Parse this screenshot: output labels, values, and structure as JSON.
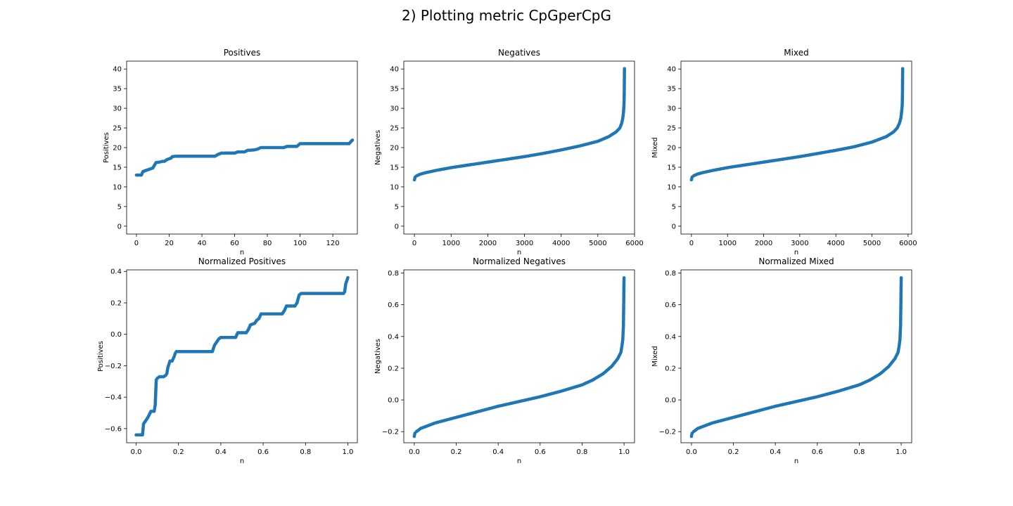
{
  "suptitle": "2) Plotting metric CpGperCpG",
  "colors": {
    "marker": "#1f77b4",
    "axes": "#000000"
  },
  "chart_data": [
    {
      "type": "scatter",
      "title": "Positives",
      "xlabel": "n",
      "ylabel": "Positives",
      "xlim": [
        -6,
        135
      ],
      "ylim": [
        -2,
        42
      ],
      "xticks": [
        0,
        20,
        40,
        60,
        80,
        100,
        120
      ],
      "yticks": [
        0,
        5,
        10,
        15,
        20,
        25,
        30,
        35,
        40
      ],
      "ytick_labels": [
        "0",
        "5",
        "10",
        "15",
        "20",
        "25",
        "30",
        "35",
        "40"
      ],
      "xtick_labels": [
        "0",
        "20",
        "40",
        "60",
        "80",
        "100",
        "120"
      ],
      "grid": false,
      "points": [
        [
          0,
          13.0
        ],
        [
          3,
          13.0
        ],
        [
          4,
          13.9
        ],
        [
          6,
          14.2
        ],
        [
          8,
          14.5
        ],
        [
          10,
          14.8
        ],
        [
          12,
          16.2
        ],
        [
          14,
          16.3
        ],
        [
          16,
          16.5
        ],
        [
          17,
          16.5
        ],
        [
          19,
          17.0
        ],
        [
          21,
          17.3
        ],
        [
          22,
          17.7
        ],
        [
          24,
          17.8
        ],
        [
          48,
          17.8
        ],
        [
          50,
          18.3
        ],
        [
          52,
          18.6
        ],
        [
          54,
          18.6
        ],
        [
          60,
          18.6
        ],
        [
          62,
          18.9
        ],
        [
          66,
          18.9
        ],
        [
          68,
          19.3
        ],
        [
          72,
          19.4
        ],
        [
          74,
          19.6
        ],
        [
          76,
          20.0
        ],
        [
          90,
          20.0
        ],
        [
          92,
          20.3
        ],
        [
          98,
          20.3
        ],
        [
          100,
          21.0
        ],
        [
          130,
          21.0
        ],
        [
          131,
          21.5
        ],
        [
          132,
          21.9
        ]
      ]
    },
    {
      "type": "scatter",
      "title": "Negatives",
      "xlabel": "n",
      "ylabel": "Negatives",
      "xlim": [
        -290,
        6000
      ],
      "ylim": [
        -2,
        42
      ],
      "xticks": [
        0,
        1000,
        2000,
        3000,
        4000,
        5000,
        6000
      ],
      "yticks": [
        0,
        5,
        10,
        15,
        20,
        25,
        30,
        35,
        40
      ],
      "xtick_labels": [
        "0",
        "1000",
        "2000",
        "3000",
        "4000",
        "5000",
        "6000"
      ],
      "ytick_labels": [
        "0",
        "5",
        "10",
        "15",
        "20",
        "25",
        "30",
        "35",
        "40"
      ],
      "grid": false,
      "points": [
        [
          0,
          11.8
        ],
        [
          20,
          12.5
        ],
        [
          60,
          12.8
        ],
        [
          150,
          13.2
        ],
        [
          300,
          13.6
        ],
        [
          600,
          14.2
        ],
        [
          1000,
          14.9
        ],
        [
          1500,
          15.6
        ],
        [
          2000,
          16.3
        ],
        [
          2500,
          17.0
        ],
        [
          3000,
          17.7
        ],
        [
          3500,
          18.5
        ],
        [
          4000,
          19.4
        ],
        [
          4500,
          20.4
        ],
        [
          5000,
          21.6
        ],
        [
          5300,
          22.8
        ],
        [
          5500,
          24.0
        ],
        [
          5600,
          25.0
        ],
        [
          5650,
          26.2
        ],
        [
          5680,
          27.5
        ],
        [
          5700,
          29.0
        ],
        [
          5710,
          30.5
        ],
        [
          5715,
          31.5
        ],
        [
          5720,
          34.2
        ],
        [
          5725,
          40.1
        ]
      ]
    },
    {
      "type": "scatter",
      "title": "Mixed",
      "xlabel": "n",
      "ylabel": "Mixed",
      "xlim": [
        -290,
        6100
      ],
      "ylim": [
        -2,
        42
      ],
      "xticks": [
        0,
        1000,
        2000,
        3000,
        4000,
        5000,
        6000
      ],
      "yticks": [
        0,
        5,
        10,
        15,
        20,
        25,
        30,
        35,
        40
      ],
      "xtick_labels": [
        "0",
        "1000",
        "2000",
        "3000",
        "4000",
        "5000",
        "6000"
      ],
      "ytick_labels": [
        "0",
        "5",
        "10",
        "15",
        "20",
        "25",
        "30",
        "35",
        "40"
      ],
      "grid": false,
      "points": [
        [
          0,
          11.8
        ],
        [
          20,
          12.5
        ],
        [
          60,
          12.8
        ],
        [
          150,
          13.2
        ],
        [
          300,
          13.6
        ],
        [
          600,
          14.2
        ],
        [
          1000,
          14.9
        ],
        [
          1500,
          15.6
        ],
        [
          2000,
          16.3
        ],
        [
          2500,
          17.0
        ],
        [
          3000,
          17.7
        ],
        [
          3500,
          18.5
        ],
        [
          4000,
          19.3
        ],
        [
          4500,
          20.2
        ],
        [
          5000,
          21.4
        ],
        [
          5400,
          22.8
        ],
        [
          5600,
          24.0
        ],
        [
          5700,
          25.0
        ],
        [
          5760,
          26.2
        ],
        [
          5800,
          27.5
        ],
        [
          5820,
          29.0
        ],
        [
          5835,
          30.5
        ],
        [
          5840,
          31.5
        ],
        [
          5845,
          34.2
        ],
        [
          5850,
          40.1
        ]
      ]
    },
    {
      "type": "scatter",
      "title": "Normalized Positives",
      "xlabel": "n",
      "ylabel": "Positives",
      "xlim": [
        -0.045,
        1.045
      ],
      "ylim": [
        -0.69,
        0.41
      ],
      "xticks": [
        0.0,
        0.2,
        0.4,
        0.6,
        0.8,
        1.0
      ],
      "yticks": [
        -0.6,
        -0.4,
        -0.2,
        0.0,
        0.2,
        0.4
      ],
      "xtick_labels": [
        "0.0",
        "0.2",
        "0.4",
        "0.6",
        "0.8",
        "1.0"
      ],
      "ytick_labels": [
        "−0.6",
        "−0.4",
        "−0.2",
        "0.0",
        "0.2",
        "0.4"
      ],
      "grid": false,
      "points": [
        [
          0.0,
          -0.64
        ],
        [
          0.03,
          -0.64
        ],
        [
          0.035,
          -0.57
        ],
        [
          0.045,
          -0.55
        ],
        [
          0.055,
          -0.53
        ],
        [
          0.07,
          -0.49
        ],
        [
          0.085,
          -0.49
        ],
        [
          0.09,
          -0.45
        ],
        [
          0.095,
          -0.29
        ],
        [
          0.1,
          -0.28
        ],
        [
          0.11,
          -0.27
        ],
        [
          0.13,
          -0.27
        ],
        [
          0.14,
          -0.26
        ],
        [
          0.145,
          -0.25
        ],
        [
          0.15,
          -0.21
        ],
        [
          0.16,
          -0.17
        ],
        [
          0.17,
          -0.17
        ],
        [
          0.18,
          -0.14
        ],
        [
          0.185,
          -0.12
        ],
        [
          0.19,
          -0.11
        ],
        [
          0.36,
          -0.11
        ],
        [
          0.37,
          -0.07
        ],
        [
          0.38,
          -0.05
        ],
        [
          0.39,
          -0.03
        ],
        [
          0.4,
          -0.02
        ],
        [
          0.47,
          -0.02
        ],
        [
          0.48,
          0.01
        ],
        [
          0.52,
          0.01
        ],
        [
          0.53,
          0.03
        ],
        [
          0.54,
          0.06
        ],
        [
          0.56,
          0.07
        ],
        [
          0.57,
          0.09
        ],
        [
          0.58,
          0.1
        ],
        [
          0.59,
          0.13
        ],
        [
          0.69,
          0.13
        ],
        [
          0.7,
          0.15
        ],
        [
          0.71,
          0.18
        ],
        [
          0.75,
          0.18
        ],
        [
          0.76,
          0.2
        ],
        [
          0.77,
          0.25
        ],
        [
          0.78,
          0.26
        ],
        [
          0.98,
          0.26
        ],
        [
          0.985,
          0.27
        ],
        [
          0.99,
          0.32
        ],
        [
          1.0,
          0.36
        ]
      ]
    },
    {
      "type": "scatter",
      "title": "Normalized Negatives",
      "xlabel": "n",
      "ylabel": "Negatives",
      "xlim": [
        -0.05,
        1.05
      ],
      "ylim": [
        -0.27,
        0.82
      ],
      "xticks": [
        0.0,
        0.2,
        0.4,
        0.6,
        0.8,
        1.0
      ],
      "yticks": [
        -0.2,
        0.0,
        0.2,
        0.4,
        0.6,
        0.8
      ],
      "xtick_labels": [
        "0.0",
        "0.2",
        "0.4",
        "0.6",
        "0.8",
        "1.0"
      ],
      "ytick_labels": [
        "−0.2",
        "0.0",
        "0.2",
        "0.4",
        "0.6",
        "0.8"
      ],
      "grid": false,
      "points": [
        [
          0.0,
          -0.23
        ],
        [
          0.003,
          -0.21
        ],
        [
          0.01,
          -0.2
        ],
        [
          0.03,
          -0.18
        ],
        [
          0.06,
          -0.165
        ],
        [
          0.1,
          -0.145
        ],
        [
          0.2,
          -0.11
        ],
        [
          0.3,
          -0.075
        ],
        [
          0.4,
          -0.04
        ],
        [
          0.5,
          -0.01
        ],
        [
          0.6,
          0.02
        ],
        [
          0.7,
          0.055
        ],
        [
          0.8,
          0.095
        ],
        [
          0.85,
          0.125
        ],
        [
          0.9,
          0.165
        ],
        [
          0.94,
          0.21
        ],
        [
          0.97,
          0.26
        ],
        [
          0.985,
          0.3
        ],
        [
          0.99,
          0.34
        ],
        [
          0.994,
          0.38
        ],
        [
          0.996,
          0.44
        ],
        [
          0.997,
          0.47
        ],
        [
          0.998,
          0.56
        ],
        [
          1.0,
          0.77
        ]
      ]
    },
    {
      "type": "scatter",
      "title": "Normalized Mixed",
      "xlabel": "n",
      "ylabel": "Mixed",
      "xlim": [
        -0.05,
        1.05
      ],
      "ylim": [
        -0.27,
        0.82
      ],
      "xticks": [
        0.0,
        0.2,
        0.4,
        0.6,
        0.8,
        1.0
      ],
      "yticks": [
        -0.2,
        0.0,
        0.2,
        0.4,
        0.6,
        0.8
      ],
      "xtick_labels": [
        "0.0",
        "0.2",
        "0.4",
        "0.6",
        "0.8",
        "1.0"
      ],
      "ytick_labels": [
        "−0.2",
        "0.0",
        "0.2",
        "0.4",
        "0.6",
        "0.8"
      ],
      "grid": false,
      "points": [
        [
          0.0,
          -0.23
        ],
        [
          0.003,
          -0.21
        ],
        [
          0.01,
          -0.2
        ],
        [
          0.03,
          -0.18
        ],
        [
          0.06,
          -0.165
        ],
        [
          0.1,
          -0.145
        ],
        [
          0.2,
          -0.11
        ],
        [
          0.3,
          -0.075
        ],
        [
          0.4,
          -0.04
        ],
        [
          0.5,
          -0.01
        ],
        [
          0.6,
          0.02
        ],
        [
          0.7,
          0.055
        ],
        [
          0.8,
          0.095
        ],
        [
          0.85,
          0.125
        ],
        [
          0.9,
          0.165
        ],
        [
          0.94,
          0.21
        ],
        [
          0.97,
          0.26
        ],
        [
          0.985,
          0.3
        ],
        [
          0.99,
          0.34
        ],
        [
          0.994,
          0.38
        ],
        [
          0.996,
          0.44
        ],
        [
          0.997,
          0.47
        ],
        [
          0.998,
          0.56
        ],
        [
          1.0,
          0.77
        ]
      ]
    }
  ]
}
